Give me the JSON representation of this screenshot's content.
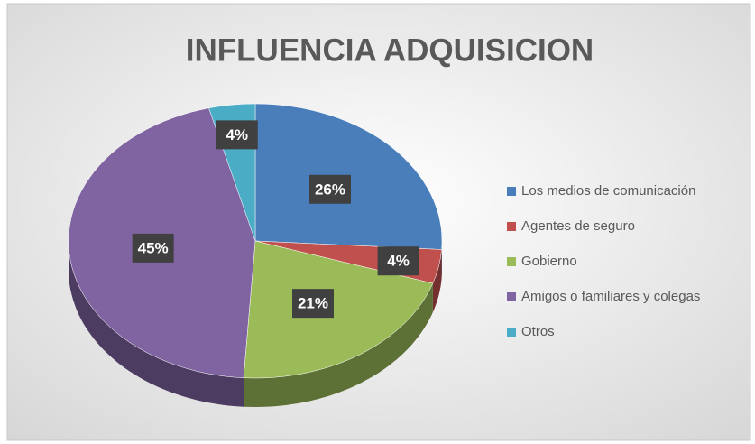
{
  "chart_data": {
    "type": "pie",
    "title": "INFLUENCIA ADQUISICION",
    "categories": [
      "Los medios de comunicación",
      "Agentes de seguro",
      "Gobierno",
      "Amigos o familiares y colegas",
      "Otros"
    ],
    "values": [
      26,
      4,
      21,
      45,
      4
    ],
    "value_labels": [
      "26%",
      "4%",
      "21%",
      "45%",
      "4%"
    ],
    "colors": [
      "#4a7ebb",
      "#c0504d",
      "#9bbb59",
      "#8064a2",
      "#4bacc6"
    ],
    "legend": "right"
  }
}
